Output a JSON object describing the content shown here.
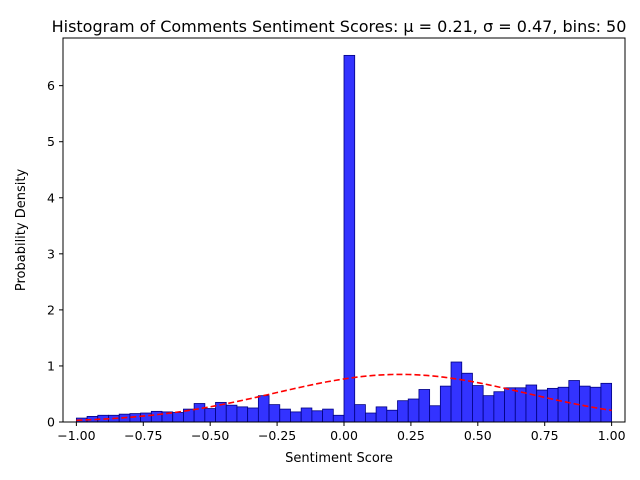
{
  "chart_data": {
    "type": "bar",
    "title": "Histogram of Comments Sentiment Scores: μ = 0.21, σ = 0.47, bins: 50",
    "xlabel": "Sentiment Score",
    "ylabel": "Probability Density",
    "xlim": [
      -1.05,
      1.05
    ],
    "ylim": [
      0,
      6.85
    ],
    "bin_range": [
      -1.0,
      1.0
    ],
    "bin_count": 50,
    "xticks": [
      -1.0,
      -0.75,
      -0.5,
      -0.25,
      0.0,
      0.25,
      0.5,
      0.75,
      1.0
    ],
    "xtick_labels": [
      "−1.00",
      "−0.75",
      "−0.50",
      "−0.25",
      "0.00",
      "0.25",
      "0.50",
      "0.75",
      "1.00"
    ],
    "yticks": [
      0,
      1,
      2,
      3,
      4,
      5,
      6
    ],
    "ytick_labels": [
      "0",
      "1",
      "2",
      "3",
      "4",
      "5",
      "6"
    ],
    "grid": false,
    "bar_color": "#3333ff",
    "bar_edge_color": "#000080",
    "curve_color": "#ff0000",
    "series": [
      {
        "kind": "histogram",
        "densities": [
          0.07,
          0.1,
          0.12,
          0.12,
          0.14,
          0.15,
          0.16,
          0.19,
          0.18,
          0.17,
          0.23,
          0.33,
          0.24,
          0.35,
          0.3,
          0.27,
          0.25,
          0.47,
          0.31,
          0.23,
          0.18,
          0.25,
          0.2,
          0.23,
          0.12,
          6.54,
          0.31,
          0.16,
          0.27,
          0.21,
          0.38,
          0.41,
          0.58,
          0.29,
          0.64,
          1.07,
          0.87,
          0.65,
          0.47,
          0.54,
          0.61,
          0.61,
          0.66,
          0.57,
          0.6,
          0.62,
          0.74,
          0.64,
          0.62,
          0.69
        ]
      },
      {
        "kind": "normal-pdf",
        "style": "dashed",
        "mu": 0.21,
        "sigma": 0.47
      }
    ]
  }
}
